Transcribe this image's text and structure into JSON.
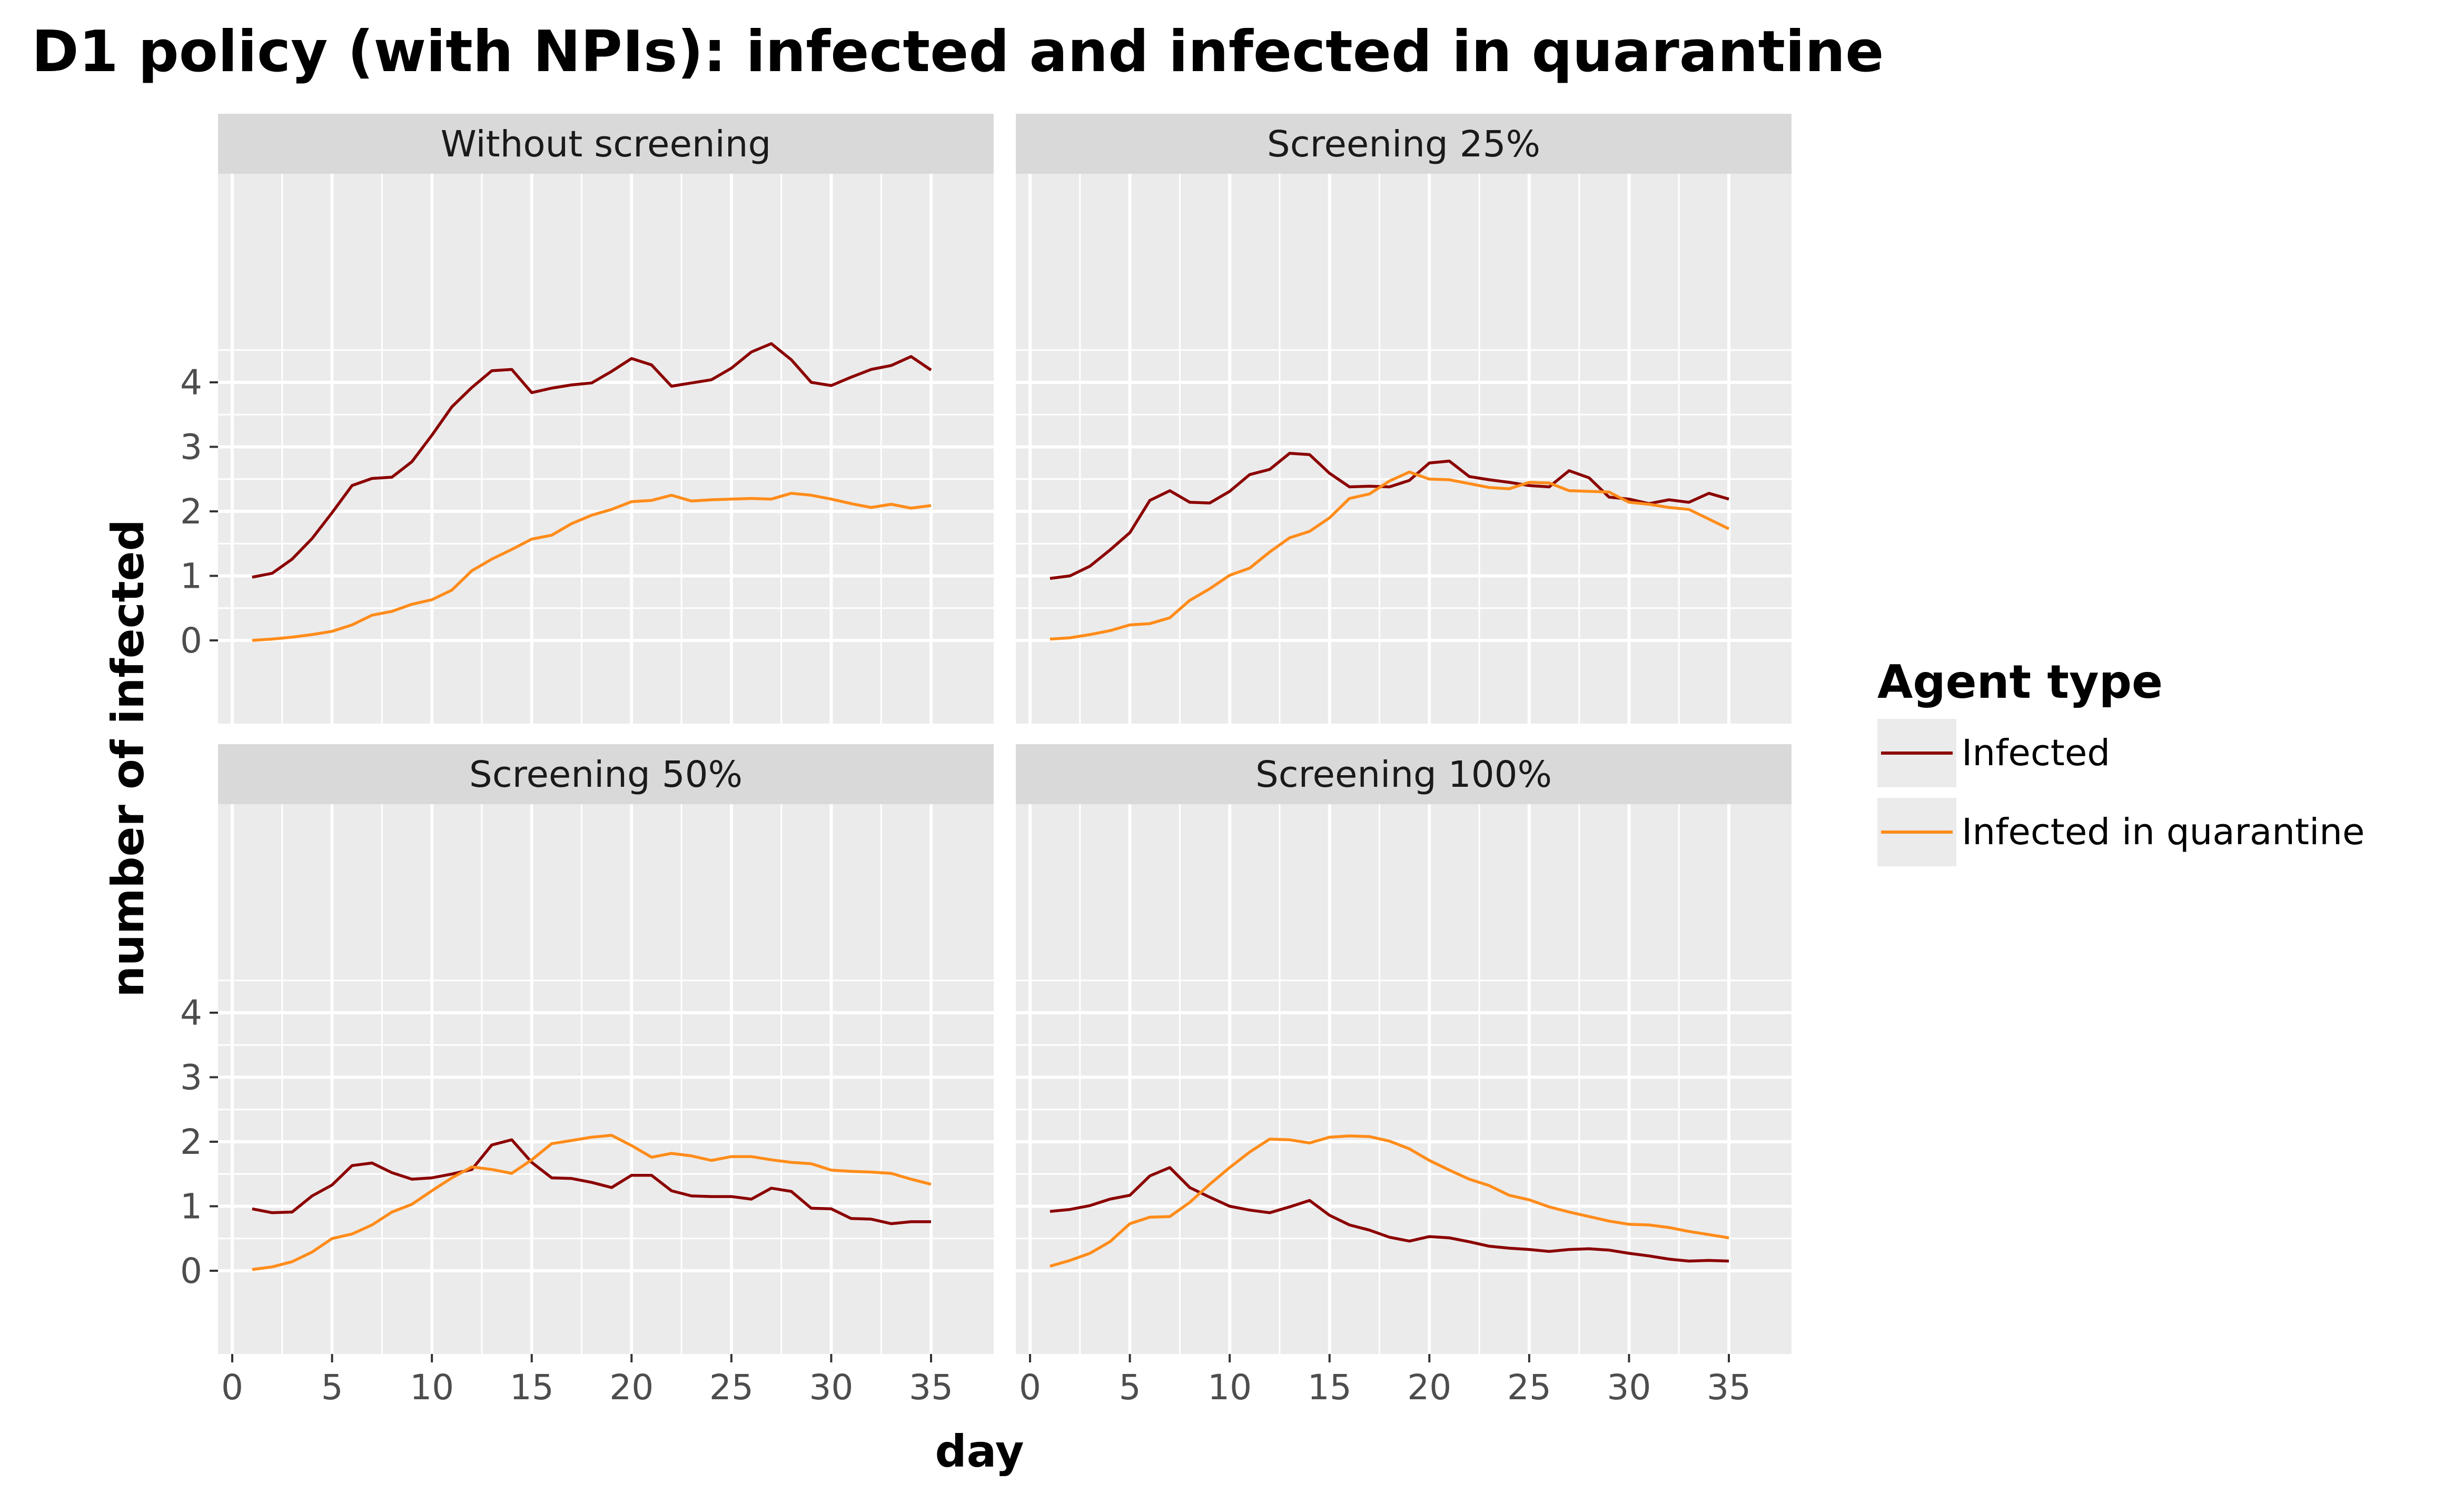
{
  "chart_data": {
    "type": "line",
    "title": "D1 policy (with NPIs): infected and infected in quarantine",
    "xlabel": "day",
    "ylabel": "number of infected",
    "xlim": [
      0,
      36
    ],
    "ylim": [
      0,
      4.9
    ],
    "x_ticks": [
      0,
      5,
      10,
      15,
      20,
      25,
      30,
      35
    ],
    "y_ticks": [
      0,
      1,
      2,
      3,
      4
    ],
    "grid": true,
    "legend": {
      "title": "Agent type",
      "position": "right",
      "entries": [
        {
          "label": "Infected",
          "color": "#8b0000"
        },
        {
          "label": "Infected in quarantine",
          "color": "#ff8c1a"
        }
      ]
    },
    "x": [
      1,
      2,
      3,
      4,
      5,
      6,
      7,
      8,
      9,
      10,
      11,
      12,
      13,
      14,
      15,
      16,
      17,
      18,
      19,
      20,
      21,
      22,
      23,
      24,
      25,
      26,
      27,
      28,
      29,
      30,
      31,
      32,
      33,
      34,
      35
    ],
    "facets": [
      {
        "label": "Without screening",
        "series": [
          {
            "name": "Infected",
            "values": [
              0.98,
              1.04,
              1.26,
              1.58,
              1.98,
              2.4,
              2.51,
              2.53,
              2.77,
              3.18,
              3.62,
              3.92,
              4.18,
              4.2,
              3.84,
              3.91,
              3.96,
              3.99,
              4.17,
              4.37,
              4.27,
              3.94,
              3.99,
              4.04,
              4.22,
              4.47,
              4.6,
              4.35,
              4.0,
              3.95,
              4.08,
              4.2,
              4.26,
              4.4,
              4.19
            ]
          },
          {
            "name": "Infected in quarantine",
            "values": [
              0.0,
              0.02,
              0.05,
              0.09,
              0.14,
              0.24,
              0.39,
              0.45,
              0.56,
              0.63,
              0.78,
              1.08,
              1.26,
              1.41,
              1.57,
              1.63,
              1.81,
              1.94,
              2.03,
              2.15,
              2.17,
              2.25,
              2.16,
              2.18,
              2.19,
              2.2,
              2.19,
              2.28,
              2.25,
              2.19,
              2.12,
              2.06,
              2.11,
              2.05,
              2.09
            ]
          }
        ]
      },
      {
        "label": "Screening 25%",
        "series": [
          {
            "name": "Infected",
            "values": [
              0.96,
              1.0,
              1.15,
              1.4,
              1.67,
              2.17,
              2.32,
              2.14,
              2.13,
              2.31,
              2.57,
              2.65,
              2.9,
              2.88,
              2.59,
              2.38,
              2.39,
              2.38,
              2.48,
              2.75,
              2.78,
              2.54,
              2.49,
              2.45,
              2.4,
              2.38,
              2.63,
              2.52,
              2.22,
              2.19,
              2.12,
              2.18,
              2.14,
              2.28,
              2.19
            ]
          },
          {
            "name": "Infected in quarantine",
            "values": [
              0.02,
              0.04,
              0.09,
              0.15,
              0.24,
              0.26,
              0.35,
              0.62,
              0.8,
              1.01,
              1.12,
              1.37,
              1.59,
              1.69,
              1.9,
              2.2,
              2.27,
              2.47,
              2.61,
              2.5,
              2.49,
              2.43,
              2.37,
              2.35,
              2.45,
              2.44,
              2.32,
              2.31,
              2.3,
              2.14,
              2.11,
              2.06,
              2.03,
              1.88,
              1.73
            ]
          }
        ]
      },
      {
        "label": "Screening 50%",
        "series": [
          {
            "name": "Infected",
            "values": [
              0.96,
              0.9,
              0.91,
              1.16,
              1.33,
              1.63,
              1.67,
              1.52,
              1.42,
              1.44,
              1.5,
              1.57,
              1.95,
              2.03,
              1.68,
              1.44,
              1.43,
              1.37,
              1.29,
              1.48,
              1.48,
              1.24,
              1.16,
              1.15,
              1.15,
              1.11,
              1.28,
              1.23,
              0.97,
              0.96,
              0.81,
              0.8,
              0.73,
              0.76,
              0.76
            ]
          },
          {
            "name": "Infected in quarantine",
            "values": [
              0.02,
              0.06,
              0.14,
              0.29,
              0.5,
              0.57,
              0.71,
              0.91,
              1.03,
              1.24,
              1.44,
              1.61,
              1.57,
              1.51,
              1.72,
              1.97,
              2.02,
              2.07,
              2.1,
              1.94,
              1.76,
              1.82,
              1.78,
              1.71,
              1.77,
              1.77,
              1.72,
              1.68,
              1.66,
              1.56,
              1.54,
              1.53,
              1.51,
              1.42,
              1.34
            ]
          }
        ]
      },
      {
        "label": "Screening 100%",
        "series": [
          {
            "name": "Infected",
            "values": [
              0.92,
              0.95,
              1.01,
              1.11,
              1.17,
              1.47,
              1.6,
              1.29,
              1.14,
              1.0,
              0.94,
              0.9,
              0.99,
              1.09,
              0.86,
              0.71,
              0.63,
              0.52,
              0.46,
              0.53,
              0.51,
              0.45,
              0.38,
              0.35,
              0.33,
              0.3,
              0.33,
              0.34,
              0.32,
              0.27,
              0.23,
              0.18,
              0.15,
              0.16,
              0.15
            ]
          },
          {
            "name": "Infected in quarantine",
            "values": [
              0.07,
              0.16,
              0.27,
              0.45,
              0.73,
              0.83,
              0.84,
              1.06,
              1.34,
              1.6,
              1.84,
              2.04,
              2.03,
              1.98,
              2.07,
              2.09,
              2.08,
              2.01,
              1.89,
              1.71,
              1.56,
              1.42,
              1.32,
              1.17,
              1.1,
              0.99,
              0.91,
              0.84,
              0.77,
              0.72,
              0.71,
              0.67,
              0.61,
              0.56,
              0.51
            ]
          }
        ]
      }
    ]
  }
}
